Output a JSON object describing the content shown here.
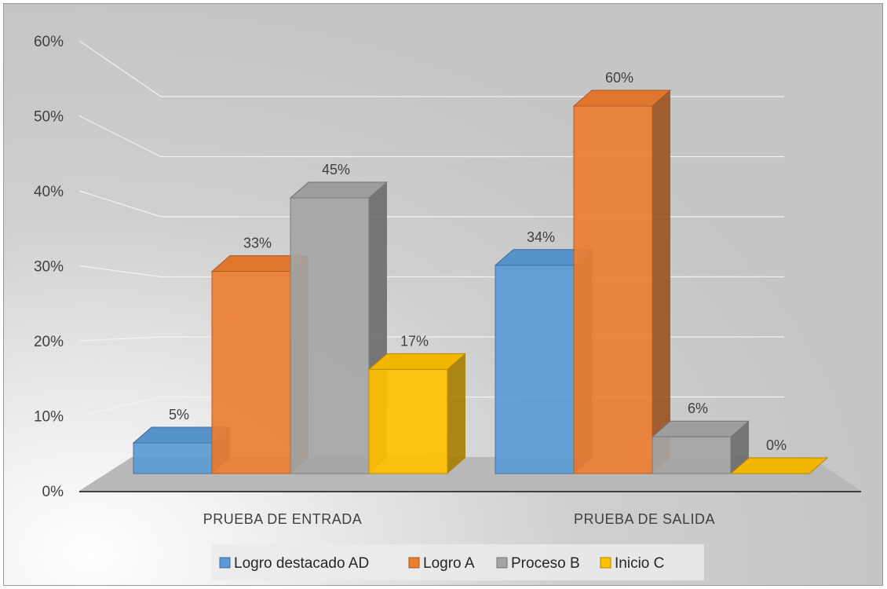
{
  "chart_data": {
    "type": "bar",
    "style": "3d-clustered-column",
    "categories": [
      "PRUEBA DE ENTRADA",
      "PRUEBA DE SALIDA"
    ],
    "series": [
      {
        "name": "Logro destacado AD",
        "values": [
          5,
          34
        ],
        "labels": [
          "5%",
          "34%"
        ],
        "color": "#5b9bd5"
      },
      {
        "name": "Logro A",
        "values": [
          33,
          60
        ],
        "labels": [
          "33%",
          "60%"
        ],
        "color": "#ed7d31"
      },
      {
        "name": "Proceso B",
        "values": [
          45,
          6
        ],
        "labels": [
          "45%",
          "6%"
        ],
        "color": "#a5a5a5"
      },
      {
        "name": "Inicio C",
        "values": [
          17,
          0
        ],
        "labels": [
          "17%",
          "0%"
        ],
        "color": "#ffc000"
      }
    ],
    "yticks": [
      "0%",
      "10%",
      "20%",
      "30%",
      "40%",
      "50%",
      "60%"
    ],
    "ylim": [
      0,
      60
    ],
    "grid": true,
    "legend": "bottom"
  }
}
